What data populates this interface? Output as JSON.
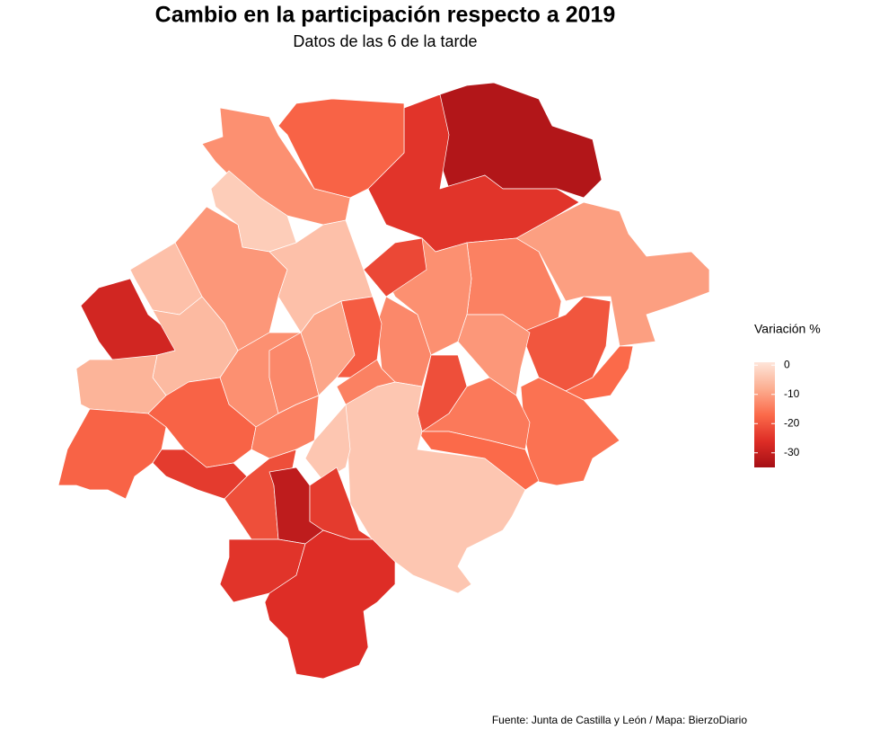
{
  "chart_data": {
    "type": "choropleth",
    "title": "Cambio en la participación respecto a 2019",
    "subtitle": "Datos de las 6 de la tarde",
    "legend_title": "Variación %",
    "caption": "Fuente: Junta de Castilla y León / Mapa: BierzoDiario",
    "values": [
      -33,
      -25,
      -18,
      -12,
      -3,
      -10,
      -14,
      -20,
      -17,
      -16,
      -12,
      -22,
      -13,
      -11,
      -21,
      -15,
      -17,
      -4,
      -11,
      -5,
      -12,
      -13,
      -9,
      -19,
      -14,
      -5,
      -28,
      -6,
      -7,
      -18,
      -18,
      -24,
      -14,
      -4,
      -21,
      -31,
      -24,
      -25,
      -26
    ],
    "limits": [
      -35,
      1
    ],
    "ticks": [
      0,
      -10,
      -20,
      -30
    ],
    "colors": [
      "#a50f15",
      "#de2d26",
      "#fb6a4a",
      "#fcae91",
      "#fee5d9"
    ]
  }
}
